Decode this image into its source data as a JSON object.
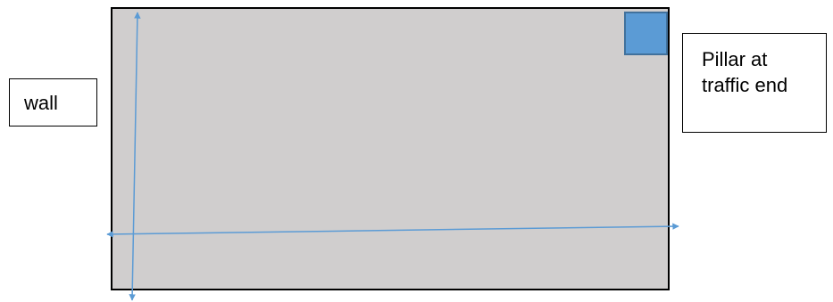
{
  "diagram": {
    "wall_label": "wall",
    "pillar_label_lines": [
      "Pillar at",
      "traffic end"
    ],
    "colors": {
      "room_fill": "#d0cece",
      "room_border": "#000000",
      "pillar_fill": "#5b9bd5",
      "pillar_border": "#41719c",
      "arrow": "#5b9bd5"
    },
    "icons": [
      "vertical-double-arrow",
      "horizontal-double-arrow"
    ]
  }
}
